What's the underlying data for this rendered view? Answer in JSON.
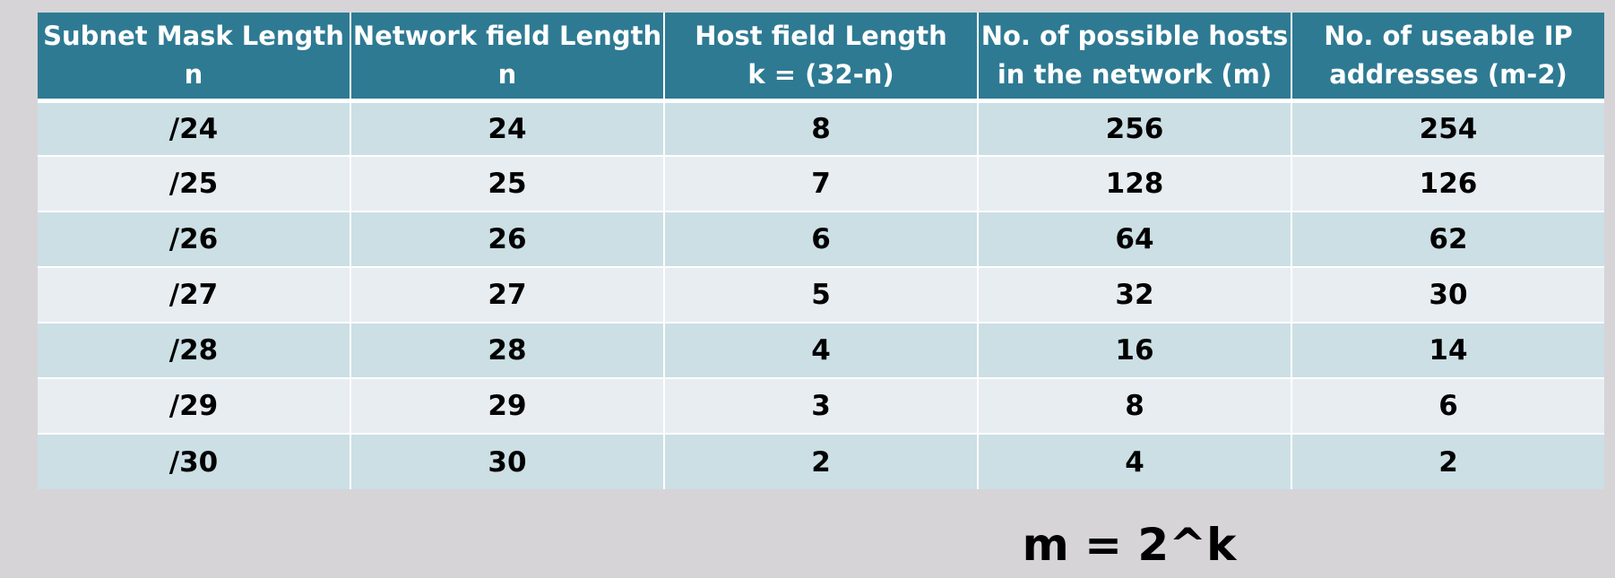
{
  "table": {
    "headers": [
      {
        "line1": "Subnet Mask Length",
        "line2": "n"
      },
      {
        "line1": "Network field Length",
        "line2": "n"
      },
      {
        "line1": "Host field Length",
        "line2": "k = (32-n)"
      },
      {
        "line1": "No. of possible hosts",
        "line2": "in the network (m)"
      },
      {
        "line1": "No. of useable IP",
        "line2": "addresses (m-2)"
      }
    ],
    "rows": [
      [
        "/24",
        "24",
        "8",
        "256",
        "254"
      ],
      [
        "/25",
        "25",
        "7",
        "128",
        "126"
      ],
      [
        "/26",
        "26",
        "6",
        "64",
        "62"
      ],
      [
        "/27",
        "27",
        "5",
        "32",
        "30"
      ],
      [
        "/28",
        "28",
        "4",
        "16",
        "14"
      ],
      [
        "/29",
        "29",
        "3",
        "8",
        "6"
      ],
      [
        "/30",
        "30",
        "2",
        "4",
        "2"
      ]
    ]
  },
  "formula": "m = 2^k",
  "colors": {
    "background": "#d6d4d7",
    "header": "#2e7a93",
    "row_odd": "#cbdfe5",
    "row_even": "#e8edf2"
  }
}
